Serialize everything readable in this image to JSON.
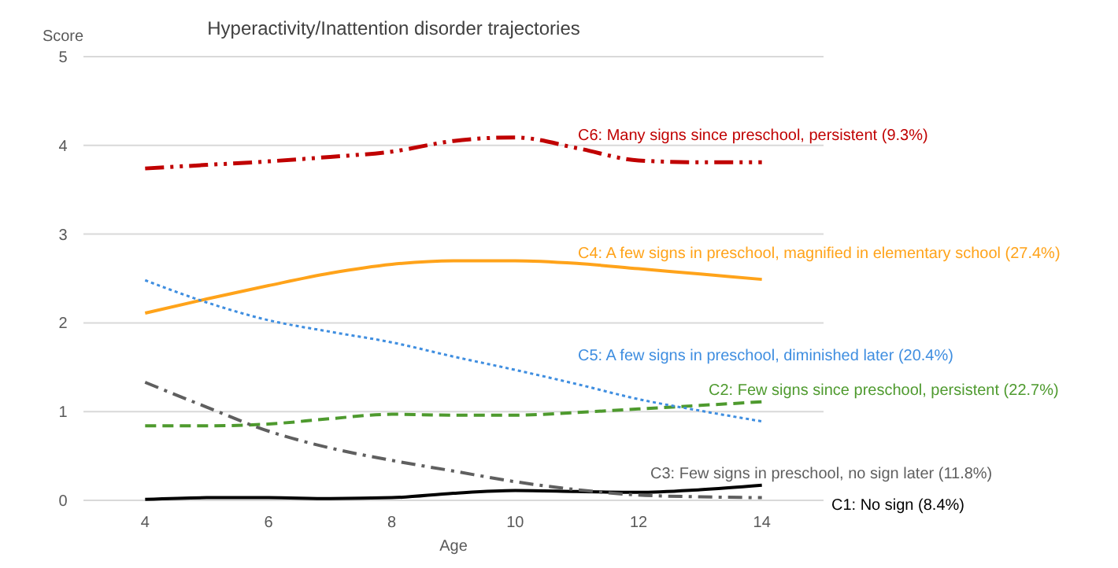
{
  "chart_data": {
    "type": "line",
    "title": "Hyperactivity/Inattention disorder trajectories",
    "xlabel": "Age",
    "ylabel": "Score",
    "x": [
      4,
      5,
      6,
      7,
      8,
      9,
      10,
      11,
      12,
      13,
      14
    ],
    "xlim": [
      3,
      15
    ],
    "xticks": [
      4,
      6,
      8,
      10,
      12,
      14
    ],
    "ylim": [
      0,
      5
    ],
    "yticks": [
      0,
      1,
      2,
      3,
      4,
      5
    ],
    "grid": "y",
    "legend": false,
    "marker": "none",
    "series": [
      {
        "name": "C1: No sign (8.4%)",
        "color": "#000000",
        "line_style": "solid",
        "values": [
          0.01,
          0.03,
          0.03,
          0.02,
          0.03,
          0.08,
          0.11,
          0.1,
          0.09,
          0.12,
          0.17
        ]
      },
      {
        "name": "C2: Few signs since preschool, persistent (22.7%)",
        "color": "#4e9a2e",
        "line_style": "dashed",
        "values": [
          0.84,
          0.84,
          0.86,
          0.92,
          0.97,
          0.96,
          0.96,
          0.99,
          1.03,
          1.07,
          1.11
        ]
      },
      {
        "name": "C3: Few signs in preschool, no sign later (11.8%)",
        "color": "#5f5f5f",
        "line_style": "dashdot",
        "values": [
          1.33,
          1.05,
          0.78,
          0.59,
          0.45,
          0.33,
          0.21,
          0.12,
          0.06,
          0.04,
          0.03
        ]
      },
      {
        "name": "C4: A few signs in preschool, magnified in elementary school (27.4%)",
        "color": "#ffa31a",
        "line_style": "solid",
        "values": [
          2.11,
          2.27,
          2.42,
          2.56,
          2.66,
          2.7,
          2.7,
          2.67,
          2.61,
          2.55,
          2.49
        ]
      },
      {
        "name": "C5: A few signs in preschool, diminished later (20.4%)",
        "color": "#3f8ee0",
        "line_style": "dotted",
        "values": [
          2.48,
          2.23,
          2.03,
          1.9,
          1.78,
          1.62,
          1.47,
          1.31,
          1.14,
          1.01,
          0.89
        ]
      },
      {
        "name": "C6: Many signs since preschool, persistent (9.3%)",
        "color": "#c00000",
        "line_style": "dashdotdot",
        "values": [
          3.74,
          3.78,
          3.82,
          3.87,
          3.93,
          4.05,
          4.09,
          3.97,
          3.83,
          3.81,
          3.81
        ]
      }
    ]
  }
}
